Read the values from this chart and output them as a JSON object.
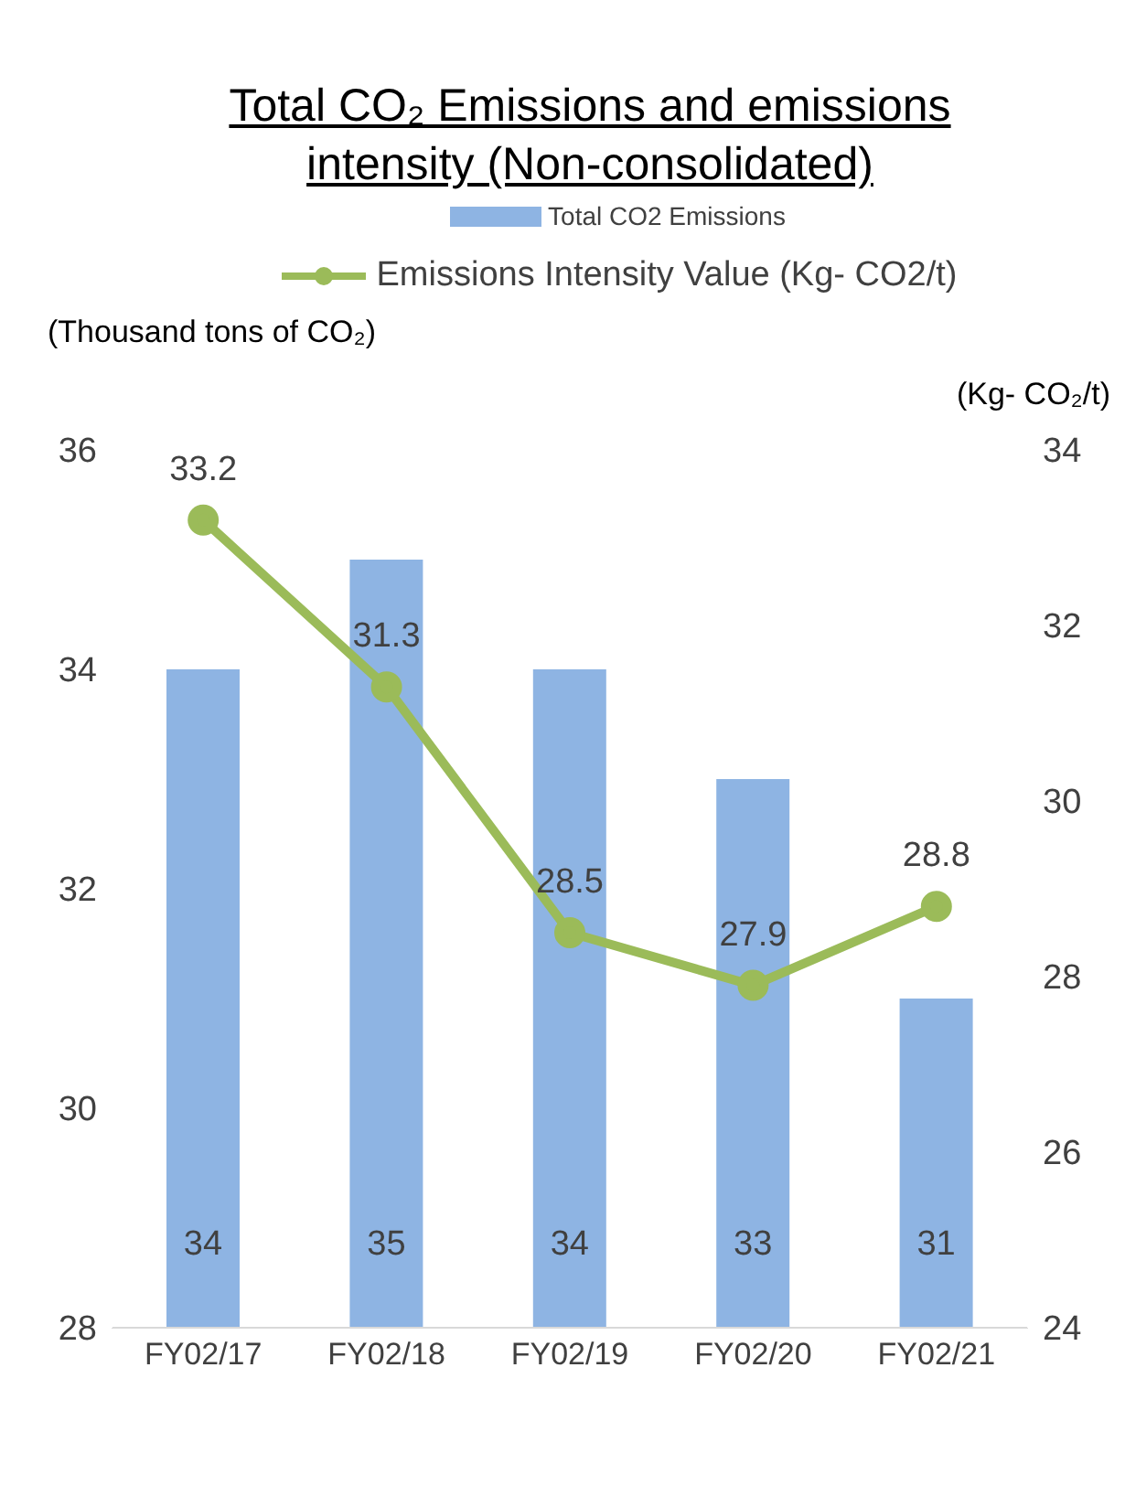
{
  "chart_data": {
    "type": "bar",
    "title": "Total CO₂ Emissions and emissions intensity (Non-consolidated)",
    "ylabel": "(Thousand tons of CO₂)",
    "y2label": "(Kg- CO₂/t)",
    "categories": [
      "FY02/17",
      "FY02/18",
      "FY02/19",
      "FY02/20",
      "FY02/21"
    ],
    "series": [
      {
        "name": "Total CO2 Emissions",
        "color": "#8eb4e3",
        "values": [
          34,
          35,
          34,
          33,
          31
        ]
      },
      {
        "name": "Emissions Intensity Value (Kg- CO2/t)",
        "type": "line",
        "axis": "y2",
        "color": "#9bbb59",
        "values": [
          33.2,
          31.3,
          28.5,
          27.9,
          28.8
        ]
      }
    ],
    "ylim": [
      28,
      36
    ],
    "yticks": [
      28,
      30,
      32,
      34,
      36
    ],
    "y2lim": [
      24,
      34
    ],
    "y2ticks": [
      24,
      26,
      28,
      30,
      32,
      34
    ],
    "data_labels": true,
    "legend": "top",
    "grid": false,
    "marker": "circle",
    "line_style": "solid"
  }
}
